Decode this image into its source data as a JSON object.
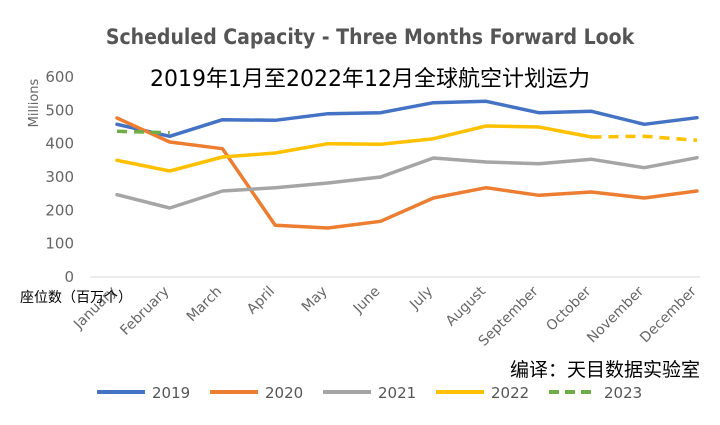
{
  "chart_data": {
    "type": "line",
    "title": "Scheduled Capacity - Three Months Forward Look",
    "subtitle": "2019年1月至2022年12月全球航空计划运力",
    "ylabel": "Millions",
    "unit_note": "座位数（百万个）",
    "credit": "编译：天目数据实验室",
    "ylim": [
      0,
      600
    ],
    "yticks": [
      0,
      100,
      200,
      300,
      400,
      500,
      600
    ],
    "categories": [
      "January",
      "February",
      "March",
      "April",
      "May",
      "June",
      "July",
      "August",
      "September",
      "October",
      "November",
      "December"
    ],
    "series": [
      {
        "name": "2019",
        "color": "#4472C4",
        "dashed": false,
        "values": [
          458,
          422,
          472,
          470,
          490,
          493,
          523,
          527,
          493,
          497,
          458,
          478
        ]
      },
      {
        "name": "2020",
        "color": "#ED7D31",
        "dashed": false,
        "values": [
          477,
          405,
          385,
          155,
          147,
          167,
          237,
          268,
          245,
          255,
          237,
          258
        ]
      },
      {
        "name": "2021",
        "color": "#A5A5A5",
        "dashed": false,
        "values": [
          247,
          207,
          258,
          268,
          282,
          300,
          357,
          345,
          340,
          353,
          328,
          358
        ]
      },
      {
        "name": "2022",
        "color": "#FFC000",
        "dashed": false,
        "values": [
          350,
          318,
          360,
          372,
          400,
          398,
          415,
          453,
          450,
          420,
          null,
          null
        ],
        "dashed_tail": [
          null,
          null,
          null,
          null,
          null,
          null,
          null,
          null,
          null,
          420,
          422,
          410
        ]
      },
      {
        "name": "2023",
        "color": "#70AD47",
        "dashed": true,
        "values": [
          437,
          433,
          null,
          null,
          null,
          null,
          null,
          null,
          null,
          null,
          null,
          null
        ]
      }
    ]
  }
}
